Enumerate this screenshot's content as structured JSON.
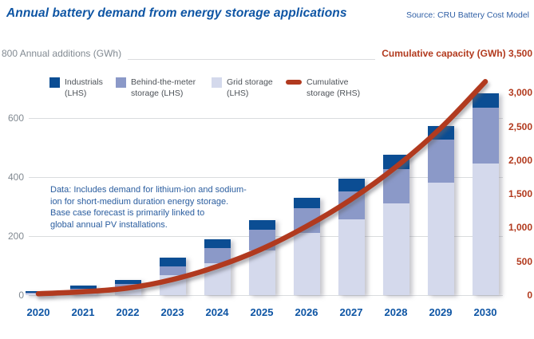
{
  "header": {
    "title": "Annual battery demand from energy storage applications",
    "source": "Source: CRU Battery Cost Model"
  },
  "axes": {
    "left_header": "800 Annual additions (GWh)",
    "right_header": "Cumulative capacity (GWh) 3,500"
  },
  "legend": {
    "items": [
      {
        "label": "Industrials\n(LHS)",
        "type": "square",
        "color": "#0b4d93"
      },
      {
        "label": "Behind-the-meter\nstorage (LHS)",
        "type": "square",
        "color": "#8b99c8"
      },
      {
        "label": "Grid storage\n(LHS)",
        "type": "square",
        "color": "#d4d9ec"
      },
      {
        "label": "Cumulative\nstorage (RHS)",
        "type": "line",
        "color": "#b13a1f"
      }
    ]
  },
  "annotation": {
    "text": "Data: Includes demand for lithium-ion and sodium-\nion for short-medium duration energy storage.\nBase case forecast is primarily linked to\nglobal annual PV installations."
  },
  "colors": {
    "title_blue": "#0e55a4",
    "axis_gray": "#828a92",
    "axis_red": "#b23a1e",
    "gridline": "#dadcde"
  },
  "chart_data": {
    "type": "bar",
    "subtype": "stacked bars (left axis) with cumulative line overlay (right axis)",
    "title": "Annual battery demand from energy storage applications",
    "categories": [
      "2020",
      "2021",
      "2022",
      "2023",
      "2024",
      "2025",
      "2026",
      "2027",
      "2028",
      "2029",
      "2030"
    ],
    "series": [
      {
        "name": "Grid storage (LHS)",
        "axis": "left",
        "color": "#d4d9ec",
        "values": [
          5,
          15,
          26,
          68,
          108,
          150,
          210,
          257,
          311,
          380,
          445
        ]
      },
      {
        "name": "Behind-the-meter storage (LHS)",
        "axis": "left",
        "color": "#8b99c8",
        "values": [
          3,
          7,
          11,
          29,
          52,
          72,
          85,
          94,
          117,
          147,
          190
        ]
      },
      {
        "name": "Industrials (LHS)",
        "axis": "left",
        "color": "#0b4d93",
        "values": [
          6,
          10,
          14,
          29,
          30,
          33,
          35,
          45,
          48,
          45,
          50
        ]
      }
    ],
    "line_series": {
      "name": "Cumulative storage (RHS)",
      "type": "line",
      "axis": "right",
      "color": "#b13a1f",
      "values": [
        20,
        50,
        105,
        230,
        425,
        685,
        1020,
        1420,
        1900,
        2475,
        3165
      ]
    },
    "left_axis": {
      "label": "Annual additions (GWh)",
      "range": [
        0,
        800
      ],
      "ticks": [
        "0",
        "200",
        "400",
        "600",
        "800"
      ]
    },
    "right_axis": {
      "label": "Cumulative capacity (GWh)",
      "range": [
        0,
        3500
      ],
      "ticks": [
        "0",
        "500",
        "1,000",
        "1,500",
        "2,000",
        "2,500",
        "3,000",
        "3,500"
      ]
    },
    "grid": "horizontal gridlines on",
    "legend_position": "top inside plot"
  }
}
